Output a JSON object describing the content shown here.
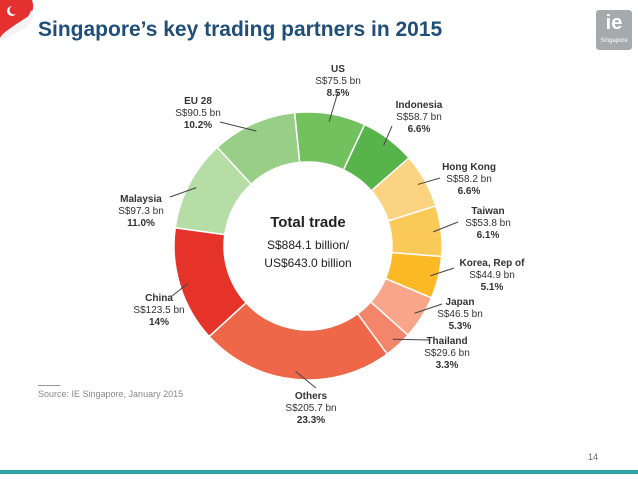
{
  "slide": {
    "title": "Singapore’s key trading partners in 2015",
    "source": "Source: IE Singapore, January 2015",
    "page_number": "14",
    "logo_mark": "ie",
    "logo_text": "Singapore"
  },
  "colors": {
    "title": "#1f4e79",
    "bottom_bar": "#2aa6a6",
    "flag_red": "#e4302e"
  },
  "chart_data": {
    "type": "pie",
    "donut": true,
    "center_title": "Total trade",
    "center_line1": "S$884.1 billion/",
    "center_line2": "US$643.0 billion",
    "slices": [
      {
        "name": "US",
        "value_text": "S$75.5 bn",
        "pct_text": "8.5%",
        "value": 75.5,
        "color": "#72c15f"
      },
      {
        "name": "Indonesia",
        "value_text": "S$58.7 bn",
        "pct_text": "6.6%",
        "value": 58.7,
        "color": "#56b44a"
      },
      {
        "name": "Hong Kong",
        "value_text": "S$58.2 bn",
        "pct_text": "6.6%",
        "value": 58.2,
        "color": "#fcd380"
      },
      {
        "name": "Taiwan",
        "value_text": "S$53.8 bn",
        "pct_text": "6.1%",
        "value": 53.8,
        "color": "#fac958"
      },
      {
        "name": "Korea, Rep of",
        "value_text": "S$44.9 bn",
        "pct_text": "5.1%",
        "value": 44.9,
        "color": "#fbb925"
      },
      {
        "name": "Japan",
        "value_text": "S$46.5 bn",
        "pct_text": "5.3%",
        "value": 46.5,
        "color": "#f9a58a"
      },
      {
        "name": "Thailand",
        "value_text": "S$29.6 bn",
        "pct_text": "3.3%",
        "value": 29.6,
        "color": "#f3866a"
      },
      {
        "name": "Others",
        "value_text": "S$205.7 bn",
        "pct_text": "23.3%",
        "value": 205.7,
        "color": "#ef6749"
      },
      {
        "name": "China",
        "value_text": "S$123.5 bn",
        "pct_text": "14%",
        "value": 123.5,
        "color": "#e6332a"
      },
      {
        "name": "Malaysia",
        "value_text": "S$97.3 bn",
        "pct_text": "11.0%",
        "value": 97.3,
        "color": "#b6dda6"
      },
      {
        "name": "EU 28",
        "value_text": "S$90.5 bn",
        "pct_text": "10.2%",
        "value": 90.5,
        "color": "#98ce86"
      }
    ]
  }
}
